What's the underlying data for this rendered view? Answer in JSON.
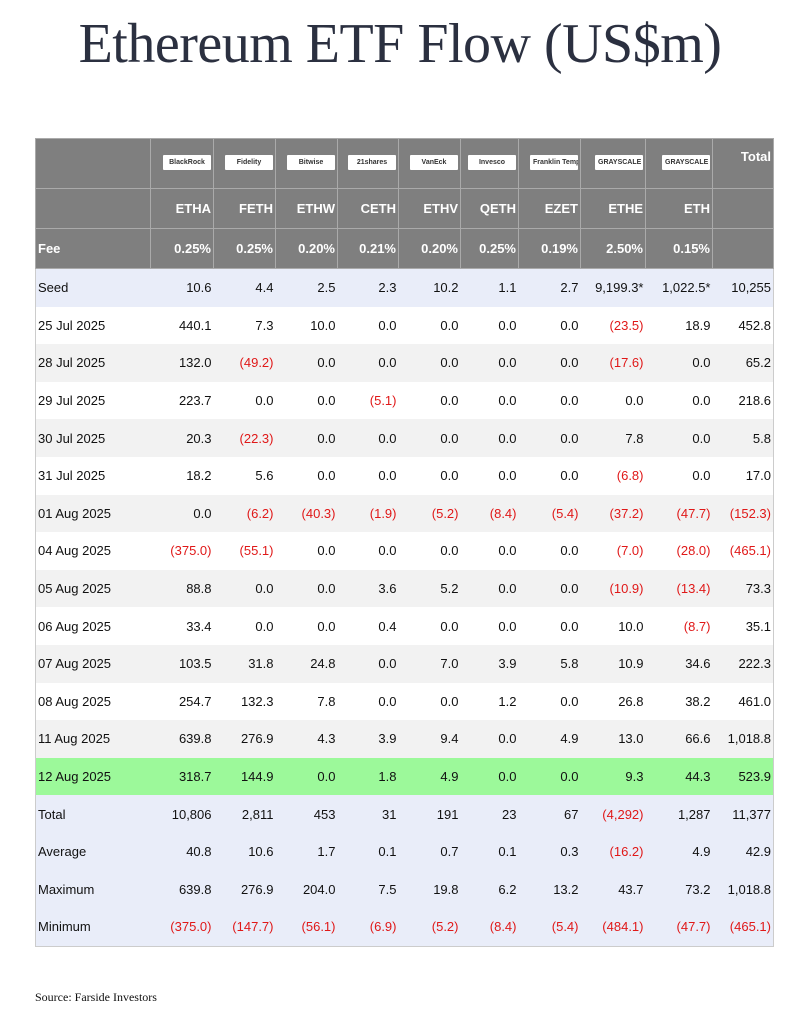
{
  "title": "Ethereum ETF Flow (US$m)",
  "source": "Source: Farside Investors",
  "colors": {
    "header_bg": "#7f7f7f",
    "negative": "#e01818",
    "highlight": "#9cf99a",
    "summary_bg": "#e9edf9"
  },
  "issuers": [
    "BlackRock",
    "Fidelity",
    "Bitwise",
    "21shares",
    "VanEck",
    "Invesco",
    "Franklin Templeton",
    "GRAYSCALE",
    "GRAYSCALE"
  ],
  "total_header": "Total",
  "tickers": [
    "ETHA",
    "FETH",
    "ETHW",
    "CETH",
    "ETHV",
    "QETH",
    "EZET",
    "ETHE",
    "ETH"
  ],
  "fee_label": "Fee",
  "fees": [
    "0.25%",
    "0.25%",
    "0.20%",
    "0.21%",
    "0.20%",
    "0.25%",
    "0.19%",
    "2.50%",
    "0.15%"
  ],
  "rows": [
    {
      "label": "Seed",
      "style": "seed",
      "values": [
        "10.6",
        "4.4",
        "2.5",
        "2.3",
        "10.2",
        "1.1",
        "2.7",
        "9,199.3*",
        "1,022.5*",
        "10,255"
      ]
    },
    {
      "label": "25 Jul 2025",
      "style": "w",
      "values": [
        "440.1",
        "7.3",
        "10.0",
        "0.0",
        "0.0",
        "0.0",
        "0.0",
        "(23.5)",
        "18.9",
        "452.8"
      ]
    },
    {
      "label": "28 Jul 2025",
      "style": "g",
      "values": [
        "132.0",
        "(49.2)",
        "0.0",
        "0.0",
        "0.0",
        "0.0",
        "0.0",
        "(17.6)",
        "0.0",
        "65.2"
      ]
    },
    {
      "label": "29 Jul 2025",
      "style": "w",
      "values": [
        "223.7",
        "0.0",
        "0.0",
        "(5.1)",
        "0.0",
        "0.0",
        "0.0",
        "0.0",
        "0.0",
        "218.6"
      ]
    },
    {
      "label": "30 Jul 2025",
      "style": "g",
      "values": [
        "20.3",
        "(22.3)",
        "0.0",
        "0.0",
        "0.0",
        "0.0",
        "0.0",
        "7.8",
        "0.0",
        "5.8"
      ]
    },
    {
      "label": "31 Jul 2025",
      "style": "w",
      "values": [
        "18.2",
        "5.6",
        "0.0",
        "0.0",
        "0.0",
        "0.0",
        "0.0",
        "(6.8)",
        "0.0",
        "17.0"
      ]
    },
    {
      "label": "01 Aug 2025",
      "style": "g",
      "values": [
        "0.0",
        "(6.2)",
        "(40.3)",
        "(1.9)",
        "(5.2)",
        "(8.4)",
        "(5.4)",
        "(37.2)",
        "(47.7)",
        "(152.3)"
      ]
    },
    {
      "label": "04 Aug 2025",
      "style": "w",
      "values": [
        "(375.0)",
        "(55.1)",
        "0.0",
        "0.0",
        "0.0",
        "0.0",
        "0.0",
        "(7.0)",
        "(28.0)",
        "(465.1)"
      ]
    },
    {
      "label": "05 Aug 2025",
      "style": "g",
      "values": [
        "88.8",
        "0.0",
        "0.0",
        "3.6",
        "5.2",
        "0.0",
        "0.0",
        "(10.9)",
        "(13.4)",
        "73.3"
      ]
    },
    {
      "label": "06 Aug 2025",
      "style": "w",
      "values": [
        "33.4",
        "0.0",
        "0.0",
        "0.4",
        "0.0",
        "0.0",
        "0.0",
        "10.0",
        "(8.7)",
        "35.1"
      ]
    },
    {
      "label": "07 Aug 2025",
      "style": "g",
      "values": [
        "103.5",
        "31.8",
        "24.8",
        "0.0",
        "7.0",
        "3.9",
        "5.8",
        "10.9",
        "34.6",
        "222.3"
      ]
    },
    {
      "label": "08 Aug 2025",
      "style": "w",
      "values": [
        "254.7",
        "132.3",
        "7.8",
        "0.0",
        "0.0",
        "1.2",
        "0.0",
        "26.8",
        "38.2",
        "461.0"
      ]
    },
    {
      "label": "11 Aug 2025",
      "style": "g",
      "values": [
        "639.8",
        "276.9",
        "4.3",
        "3.9",
        "9.4",
        "0.0",
        "4.9",
        "13.0",
        "66.6",
        "1,018.8"
      ]
    },
    {
      "label": "12 Aug 2025",
      "style": "hl",
      "values": [
        "318.7",
        "144.9",
        "0.0",
        "1.8",
        "4.9",
        "0.0",
        "0.0",
        "9.3",
        "44.3",
        "523.9"
      ]
    },
    {
      "label": "Total",
      "style": "sum",
      "values": [
        "10,806",
        "2,811",
        "453",
        "31",
        "191",
        "23",
        "67",
        "(4,292)",
        "1,287",
        "11,377"
      ]
    },
    {
      "label": "Average",
      "style": "sum",
      "values": [
        "40.8",
        "10.6",
        "1.7",
        "0.1",
        "0.7",
        "0.1",
        "0.3",
        "(16.2)",
        "4.9",
        "42.9"
      ]
    },
    {
      "label": "Maximum",
      "style": "sum",
      "values": [
        "639.8",
        "276.9",
        "204.0",
        "7.5",
        "19.8",
        "6.2",
        "13.2",
        "43.7",
        "73.2",
        "1,018.8"
      ]
    },
    {
      "label": "Minimum",
      "style": "sum",
      "values": [
        "(375.0)",
        "(147.7)",
        "(56.1)",
        "(6.9)",
        "(5.2)",
        "(8.4)",
        "(5.4)",
        "(484.1)",
        "(47.7)",
        "(465.1)"
      ]
    }
  ]
}
